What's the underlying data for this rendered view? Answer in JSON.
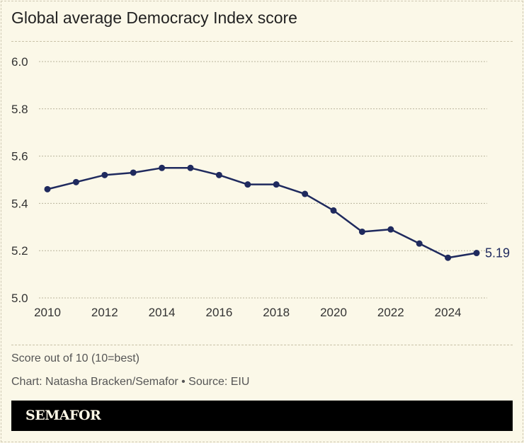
{
  "title": "Global average Democracy Index score",
  "chart_data": {
    "type": "line",
    "title": "Global average Democracy Index score",
    "x": [
      2010,
      2011,
      2012,
      2013,
      2014,
      2015,
      2016,
      2017,
      2018,
      2019,
      2020,
      2021,
      2022,
      2023,
      2024,
      2025
    ],
    "series": [
      {
        "values": [
          5.46,
          5.49,
          5.52,
          5.53,
          5.55,
          5.55,
          5.52,
          5.48,
          5.48,
          5.44,
          5.37,
          5.28,
          5.29,
          5.23,
          5.17,
          5.19
        ]
      }
    ],
    "end_label": "5.19",
    "xticks": [
      "2010",
      "2012",
      "2014",
      "2016",
      "2018",
      "2020",
      "2022",
      "2024"
    ],
    "yticks": [
      "5.0",
      "5.2",
      "5.4",
      "5.6",
      "5.8",
      "6.0"
    ],
    "ylim": [
      5.0,
      6.0
    ],
    "xlim": [
      2010,
      2025
    ],
    "grid": true,
    "line_color": "#1f2a5e"
  },
  "notes": {
    "units": "Score out of 10 (10=best)",
    "credit": "Chart: Natasha Bracken/Semafor • Source: EIU"
  },
  "logo": "SEMAFOR"
}
